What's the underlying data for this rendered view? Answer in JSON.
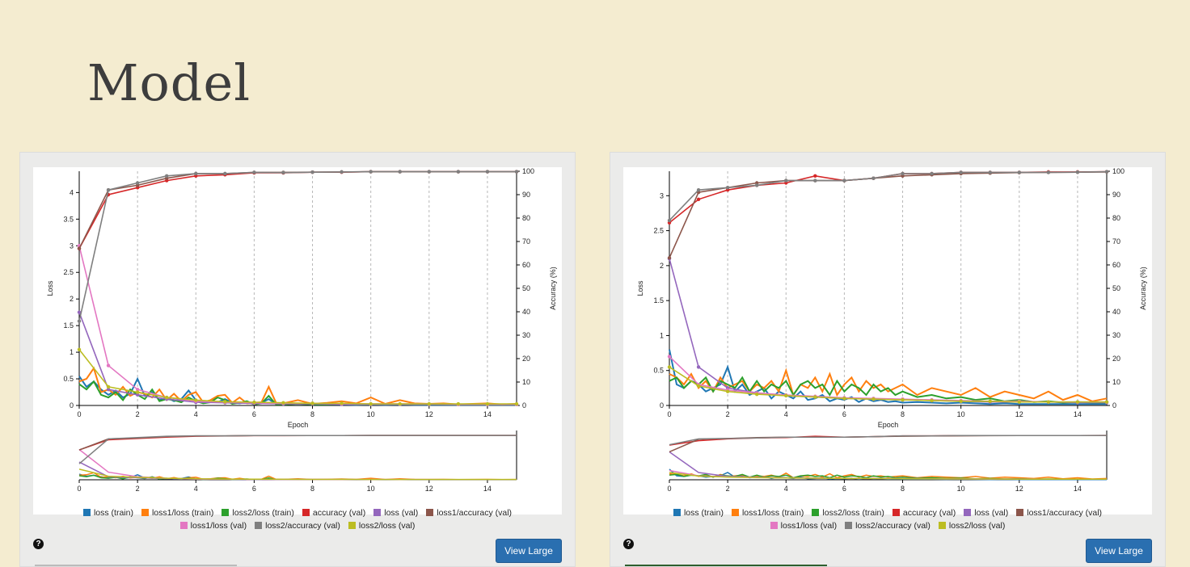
{
  "slide": {
    "title": "Model"
  },
  "ui": {
    "view_large_label": "View Large",
    "help_glyph": "?"
  },
  "colors": {
    "loss_train": "#1f77b4",
    "loss1_loss_train": "#ff7f0e",
    "loss2_loss_train": "#2ca02c",
    "accuracy_val": "#d62728",
    "loss_val": "#9467bd",
    "loss1_accuracy_val": "#8c564b",
    "loss1_loss_val": "#e377c2",
    "loss2_accuracy_val": "#7f7f7f",
    "loss2_loss_val": "#bcbd22"
  },
  "legend": {
    "row1": [
      {
        "key": "loss_train",
        "label": "loss (train)"
      },
      {
        "key": "loss1_loss_train",
        "label": "loss1/loss (train)"
      },
      {
        "key": "loss2_loss_train",
        "label": "loss2/loss (train)"
      },
      {
        "key": "accuracy_val",
        "label": "accuracy (val)"
      },
      {
        "key": "loss_val",
        "label": "loss (val)"
      },
      {
        "key": "loss1_accuracy_val",
        "label": "loss1/accuracy (val)"
      }
    ],
    "row2": [
      {
        "key": "loss1_loss_val",
        "label": "loss1/loss (val)"
      },
      {
        "key": "loss2_accuracy_val",
        "label": "loss2/accuracy (val)"
      },
      {
        "key": "loss2_loss_val",
        "label": "loss2/loss (val)"
      }
    ]
  },
  "chart_data": [
    {
      "type": "line",
      "xlabel": "Epoch",
      "ylabel": "Loss",
      "y2label": "Accuracy (%)",
      "xlim": [
        0,
        15
      ],
      "ylim": [
        0,
        4.4
      ],
      "y2lim": [
        0,
        100
      ],
      "xticks": [
        0,
        2,
        4,
        6,
        8,
        10,
        12,
        14
      ],
      "yticks": [
        0,
        0.5,
        1,
        1.5,
        2,
        2.5,
        3,
        3.5,
        4
      ],
      "y2ticks": [
        0,
        10,
        20,
        30,
        40,
        50,
        60,
        70,
        80,
        90,
        100
      ],
      "grid": "vertical dashed",
      "legend": "bottom",
      "train_noise": {
        "x": [
          0,
          0.25,
          0.5,
          0.75,
          1,
          1.25,
          1.5,
          1.75,
          2,
          2.25,
          2.5,
          2.75,
          3,
          3.25,
          3.5,
          3.75,
          4,
          4.25,
          4.5,
          4.75,
          5,
          5.25,
          5.5,
          5.75,
          6,
          6.25,
          6.5,
          6.75,
          7,
          7.5,
          8,
          8.5,
          9,
          9.5,
          10,
          10.5,
          11,
          11.5,
          12,
          12.5,
          13,
          13.5,
          14,
          14.5,
          15
        ],
        "loss_train": [
          0.55,
          0.35,
          0.45,
          0.3,
          0.2,
          0.28,
          0.15,
          0.22,
          0.5,
          0.18,
          0.25,
          0.1,
          0.15,
          0.08,
          0.12,
          0.28,
          0.1,
          0.05,
          0.08,
          0.06,
          0.12,
          0.05,
          0.04,
          0.06,
          0.03,
          0.05,
          0.12,
          0.03,
          0.02,
          0.03,
          0.02,
          0.02,
          0.02,
          0.01,
          0.02,
          0.01,
          0.02,
          0.01,
          0.01,
          0.01,
          0.01,
          0.01,
          0.01,
          0.01,
          0.01
        ],
        "loss1_loss_train": [
          0.45,
          0.5,
          0.7,
          0.25,
          0.3,
          0.2,
          0.35,
          0.18,
          0.25,
          0.22,
          0.15,
          0.3,
          0.1,
          0.22,
          0.08,
          0.2,
          0.25,
          0.06,
          0.1,
          0.18,
          0.2,
          0.05,
          0.15,
          0.04,
          0.05,
          0.06,
          0.35,
          0.05,
          0.04,
          0.1,
          0.03,
          0.05,
          0.08,
          0.04,
          0.15,
          0.03,
          0.1,
          0.04,
          0.03,
          0.04,
          0.02,
          0.03,
          0.04,
          0.02,
          0.03
        ],
        "loss2_loss_train": [
          0.4,
          0.3,
          0.45,
          0.2,
          0.15,
          0.25,
          0.1,
          0.3,
          0.2,
          0.12,
          0.3,
          0.08,
          0.12,
          0.1,
          0.06,
          0.15,
          0.08,
          0.04,
          0.06,
          0.15,
          0.1,
          0.03,
          0.05,
          0.08,
          0.02,
          0.04,
          0.18,
          0.02,
          0.02,
          0.03,
          0.02,
          0.02,
          0.03,
          0.02,
          0.02,
          0.02,
          0.02,
          0.02,
          0.02,
          0.02,
          0.02,
          0.02,
          0.02,
          0.02,
          0.02
        ]
      },
      "val": {
        "x": [
          0,
          1,
          2,
          3,
          4,
          5,
          6,
          7,
          8,
          9,
          10,
          11,
          12,
          13,
          14,
          15
        ],
        "loss_val": [
          1.75,
          0.3,
          0.2,
          0.12,
          0.06,
          0.05,
          0.04,
          0.03,
          0.03,
          0.02,
          0.02,
          0.02,
          0.02,
          0.02,
          0.02,
          0.02
        ],
        "loss1_loss_val": [
          3.0,
          0.75,
          0.3,
          0.15,
          0.08,
          0.06,
          0.05,
          0.04,
          0.04,
          0.03,
          0.03,
          0.03,
          0.03,
          0.02,
          0.02,
          0.02
        ],
        "loss2_loss_val": [
          1.05,
          0.35,
          0.25,
          0.15,
          0.1,
          0.07,
          0.06,
          0.05,
          0.04,
          0.04,
          0.03,
          0.03,
          0.03,
          0.03,
          0.03,
          0.03
        ],
        "accuracy_val": [
          67,
          90,
          93,
          96,
          98,
          98.5,
          99.3,
          99.3,
          99.6,
          99.6,
          99.8,
          99.8,
          99.8,
          99.8,
          99.8,
          99.8
        ],
        "loss1_accuracy_val": [
          67,
          92,
          94,
          97,
          99,
          99,
          99.5,
          99.5,
          99.6,
          99.7,
          99.8,
          99.8,
          99.8,
          99.8,
          99.8,
          99.8
        ],
        "loss2_accuracy_val": [
          36,
          92,
          95,
          98,
          99,
          99,
          99.5,
          99.4,
          99.6,
          99.7,
          99.8,
          99.8,
          99.8,
          99.8,
          99.8,
          99.8
        ]
      }
    },
    {
      "type": "line",
      "xlabel": "Epoch",
      "ylabel": "Loss",
      "y2label": "Accuracy (%)",
      "xlim": [
        0,
        15
      ],
      "ylim": [
        0,
        3.35
      ],
      "y2lim": [
        0,
        100
      ],
      "xticks": [
        0,
        2,
        4,
        6,
        8,
        10,
        12,
        14
      ],
      "yticks": [
        0,
        0.5,
        1,
        1.5,
        2,
        2.5,
        3
      ],
      "y2ticks": [
        0,
        10,
        20,
        30,
        40,
        50,
        60,
        70,
        80,
        90,
        100
      ],
      "grid": "vertical dashed",
      "legend": "bottom",
      "train_noise": {
        "x": [
          0,
          0.25,
          0.5,
          0.75,
          1,
          1.25,
          1.5,
          1.75,
          2,
          2.25,
          2.5,
          2.75,
          3,
          3.25,
          3.5,
          3.75,
          4,
          4.25,
          4.5,
          4.75,
          5,
          5.25,
          5.5,
          5.75,
          6,
          6.25,
          6.5,
          6.75,
          7,
          7.25,
          7.5,
          7.75,
          8,
          8.5,
          9,
          9.5,
          10,
          10.5,
          11,
          11.5,
          12,
          12.5,
          13,
          13.5,
          14,
          14.5,
          15
        ],
        "loss_train": [
          0.8,
          0.3,
          0.25,
          0.35,
          0.3,
          0.2,
          0.25,
          0.3,
          0.55,
          0.2,
          0.3,
          0.15,
          0.2,
          0.25,
          0.1,
          0.2,
          0.15,
          0.1,
          0.2,
          0.08,
          0.1,
          0.15,
          0.06,
          0.1,
          0.08,
          0.12,
          0.05,
          0.1,
          0.06,
          0.08,
          0.05,
          0.06,
          0.04,
          0.05,
          0.04,
          0.03,
          0.04,
          0.03,
          0.02,
          0.03,
          0.02,
          0.02,
          0.02,
          0.02,
          0.02,
          0.02,
          0.02
        ],
        "loss1_loss_train": [
          0.45,
          0.4,
          0.3,
          0.45,
          0.25,
          0.35,
          0.2,
          0.4,
          0.25,
          0.3,
          0.35,
          0.2,
          0.3,
          0.25,
          0.35,
          0.2,
          0.5,
          0.15,
          0.3,
          0.25,
          0.4,
          0.2,
          0.45,
          0.15,
          0.3,
          0.4,
          0.2,
          0.35,
          0.25,
          0.3,
          0.2,
          0.25,
          0.3,
          0.15,
          0.25,
          0.2,
          0.15,
          0.25,
          0.12,
          0.2,
          0.15,
          0.1,
          0.2,
          0.08,
          0.15,
          0.06,
          0.1
        ],
        "loss2_loss_train": [
          0.35,
          0.4,
          0.25,
          0.35,
          0.3,
          0.4,
          0.2,
          0.35,
          0.3,
          0.25,
          0.4,
          0.2,
          0.35,
          0.2,
          0.3,
          0.25,
          0.35,
          0.15,
          0.3,
          0.35,
          0.25,
          0.3,
          0.15,
          0.35,
          0.2,
          0.3,
          0.25,
          0.15,
          0.3,
          0.2,
          0.25,
          0.15,
          0.2,
          0.12,
          0.15,
          0.1,
          0.12,
          0.08,
          0.1,
          0.06,
          0.08,
          0.05,
          0.06,
          0.04,
          0.05,
          0.04,
          0.04
        ]
      },
      "val": {
        "x": [
          0,
          1,
          2,
          3,
          4,
          5,
          6,
          7,
          8,
          9,
          10,
          11,
          12,
          13,
          14,
          15
        ],
        "loss_val": [
          2.1,
          0.55,
          0.25,
          0.18,
          0.14,
          0.12,
          0.1,
          0.09,
          0.08,
          0.07,
          0.06,
          0.05,
          0.05,
          0.05,
          0.04,
          0.04
        ],
        "loss1_loss_val": [
          0.7,
          0.3,
          0.22,
          0.18,
          0.15,
          0.13,
          0.11,
          0.1,
          0.09,
          0.08,
          0.07,
          0.06,
          0.06,
          0.05,
          0.05,
          0.05
        ],
        "loss2_loss_val": [
          0.55,
          0.28,
          0.2,
          0.16,
          0.14,
          0.12,
          0.1,
          0.09,
          0.08,
          0.07,
          0.06,
          0.06,
          0.05,
          0.05,
          0.05,
          0.05
        ],
        "accuracy_val": [
          78,
          88,
          92,
          94,
          95,
          98,
          96,
          97,
          99,
          99,
          99.5,
          99.5,
          99.5,
          99.7,
          99.7,
          99.8
        ],
        "loss1_accuracy_val": [
          63,
          91,
          93,
          95,
          96,
          96,
          96,
          97,
          98,
          98.5,
          99,
          99.2,
          99.4,
          99.5,
          99.6,
          99.7
        ],
        "loss2_accuracy_val": [
          79,
          92,
          93,
          94,
          96,
          96,
          96,
          97,
          99,
          99,
          99.5,
          99.5,
          99.5,
          99.5,
          99.6,
          99.8
        ]
      }
    }
  ]
}
